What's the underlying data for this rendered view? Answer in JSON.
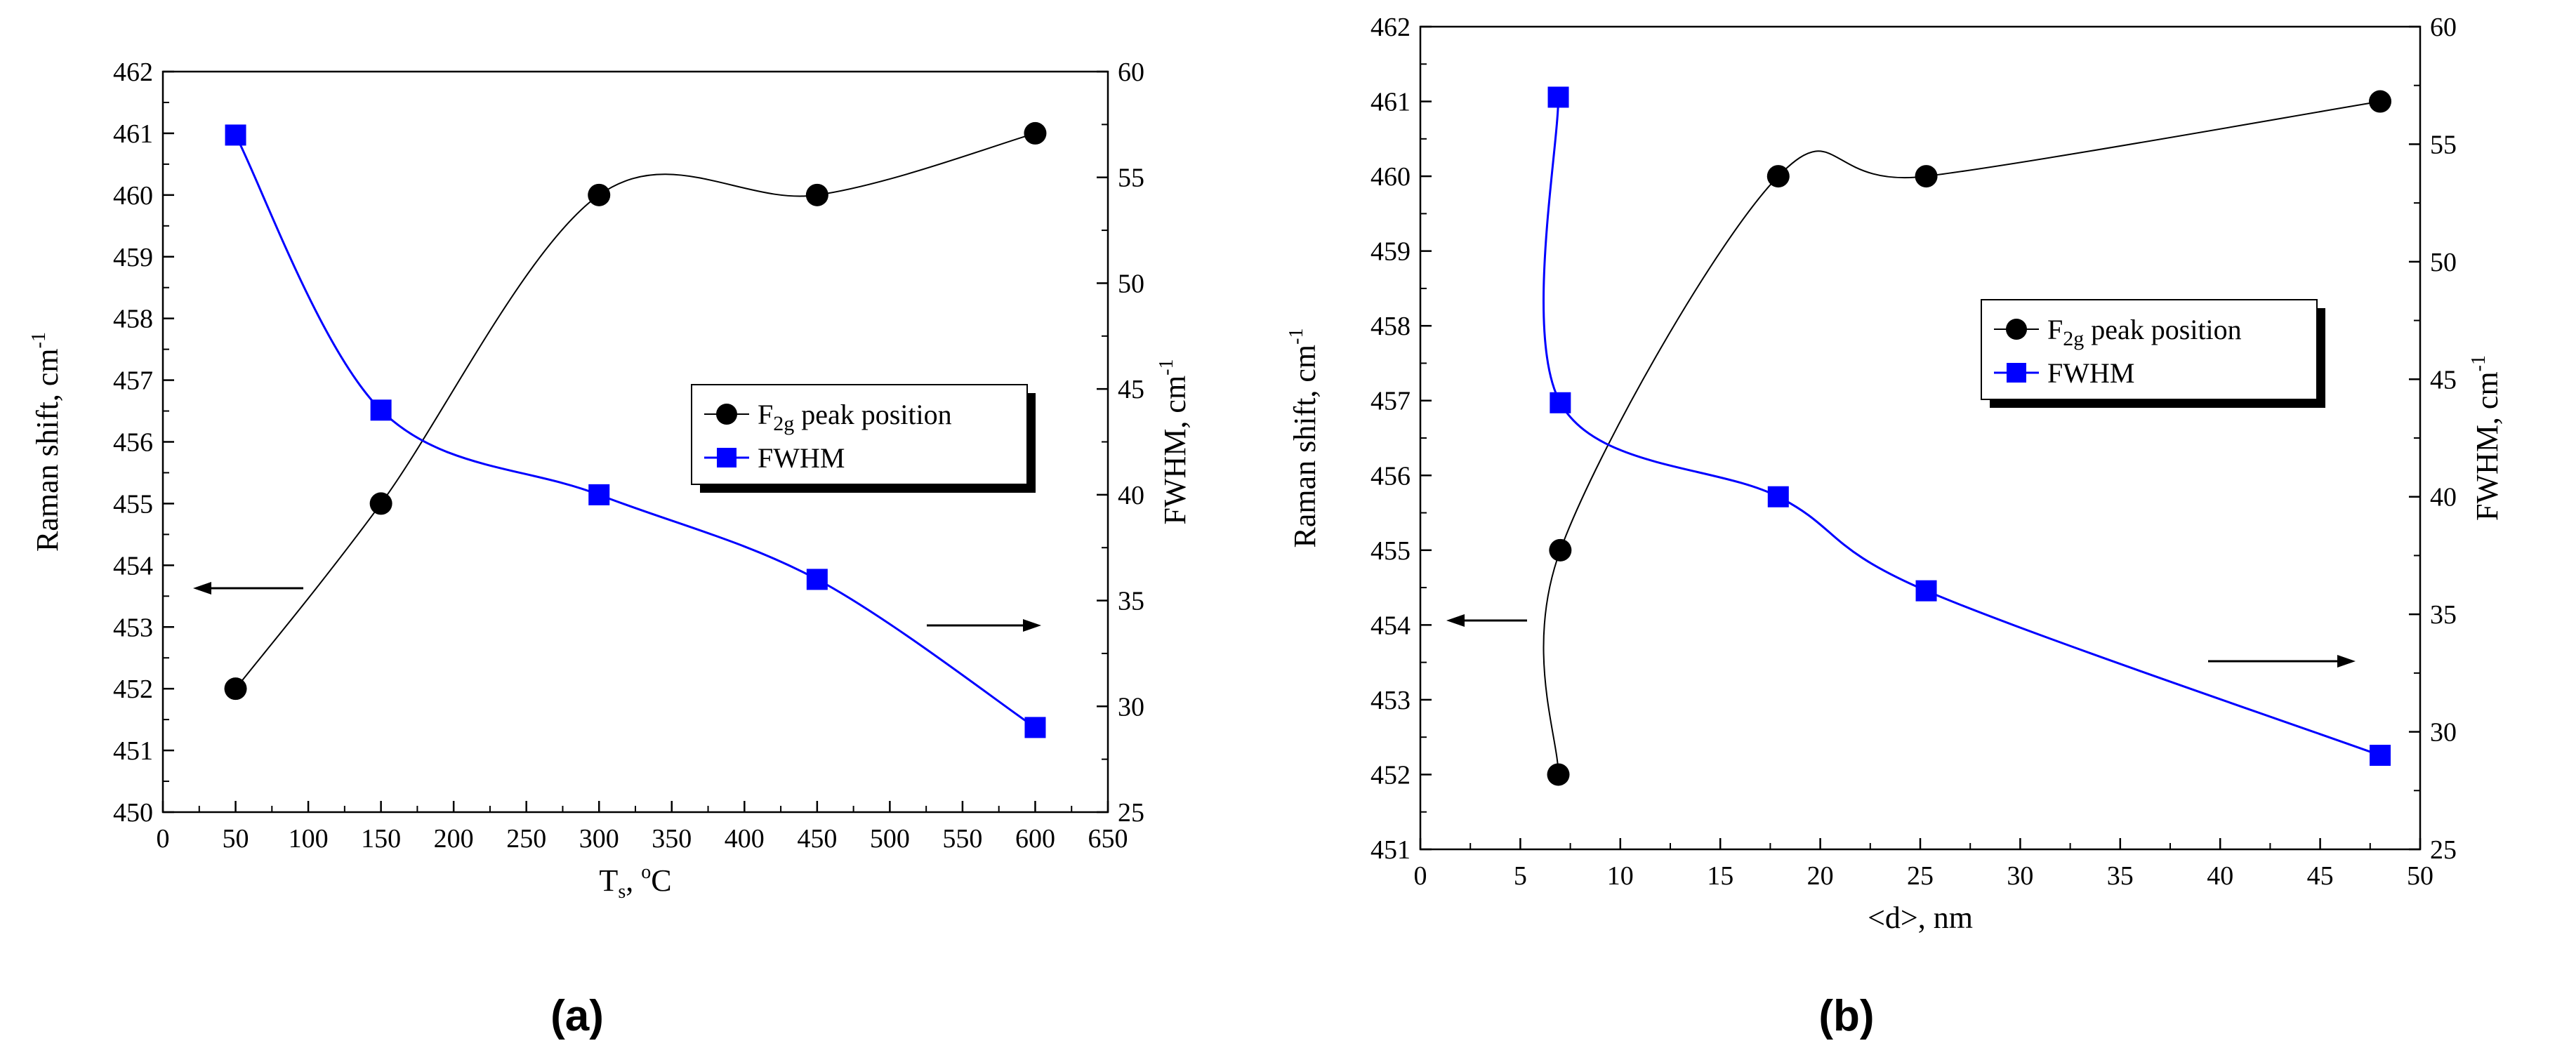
{
  "chart_data": [
    {
      "type": "line",
      "panel_label": "(a)",
      "xlabel_main": "T",
      "xlabel_sub": "s",
      "xlabel_rest": ", ",
      "xlabel_deg": "o",
      "xlabel_unit": "C",
      "ylabel_left": "Raman shift, cm",
      "ylabel_right": "FWHM, cm",
      "ylabel_sup": "-1",
      "xlim": [
        0,
        650
      ],
      "ylim_left": [
        450,
        462
      ],
      "ylim_right": [
        25,
        60
      ],
      "xticks": [
        0,
        50,
        100,
        150,
        200,
        250,
        300,
        350,
        400,
        450,
        500,
        550,
        600,
        650
      ],
      "yticks_left": [
        450,
        451,
        452,
        453,
        454,
        455,
        456,
        457,
        458,
        459,
        460,
        461,
        462
      ],
      "yticks_right": [
        25,
        30,
        35,
        40,
        45,
        50,
        55,
        60
      ],
      "legend_location": "center-right",
      "series": [
        {
          "name": "F2g peak position",
          "axis": "left",
          "marker": "circle",
          "color": "#000000",
          "x": [
            50,
            150,
            300,
            450,
            600
          ],
          "y": [
            452,
            455,
            460,
            460,
            461
          ]
        },
        {
          "name": "FWHM",
          "axis": "right",
          "marker": "square",
          "color": "#0000ff",
          "x": [
            50,
            150,
            300,
            450,
            600
          ],
          "y": [
            57,
            44,
            40,
            36,
            29
          ]
        }
      ],
      "annotations": [
        {
          "type": "arrow",
          "direction": "left",
          "meaning": "left axis (Raman shift)"
        },
        {
          "type": "arrow",
          "direction": "right",
          "meaning": "right axis (FWHM)"
        }
      ]
    },
    {
      "type": "line",
      "panel_label": "(b)",
      "xlabel": "<d>, nm",
      "ylabel_left": "Raman shift, cm",
      "ylabel_right": "FWHM, cm",
      "ylabel_sup": "-1",
      "xlim": [
        0,
        50
      ],
      "ylim_left": [
        451,
        462
      ],
      "ylim_right": [
        25,
        60
      ],
      "xticks": [
        0,
        5,
        10,
        15,
        20,
        25,
        30,
        35,
        40,
        45,
        50
      ],
      "yticks_left": [
        451,
        452,
        453,
        454,
        455,
        456,
        457,
        458,
        459,
        460,
        461,
        462
      ],
      "yticks_right": [
        25,
        30,
        35,
        40,
        45,
        50,
        55,
        60
      ],
      "legend_location": "center-right",
      "series": [
        {
          "name": "F2g peak position",
          "axis": "left",
          "marker": "circle",
          "color": "#000000",
          "x": [
            6.9,
            7.0,
            17.9,
            25.3,
            48
          ],
          "y": [
            452,
            455,
            460,
            460,
            461
          ]
        },
        {
          "name": "FWHM",
          "axis": "right",
          "marker": "square",
          "color": "#0000ff",
          "x": [
            6.9,
            7.0,
            17.9,
            25.3,
            48
          ],
          "y": [
            57,
            44,
            40,
            36,
            29
          ]
        }
      ],
      "annotations": [
        {
          "type": "arrow",
          "direction": "left",
          "meaning": "left axis (Raman shift)"
        },
        {
          "type": "arrow",
          "direction": "right",
          "meaning": "right axis (FWHM)"
        }
      ]
    }
  ],
  "legend_texts": {
    "f2g_main": "F",
    "f2g_sub": "2g",
    "f2g_rest": " peak position",
    "fwhm": "FWHM"
  }
}
